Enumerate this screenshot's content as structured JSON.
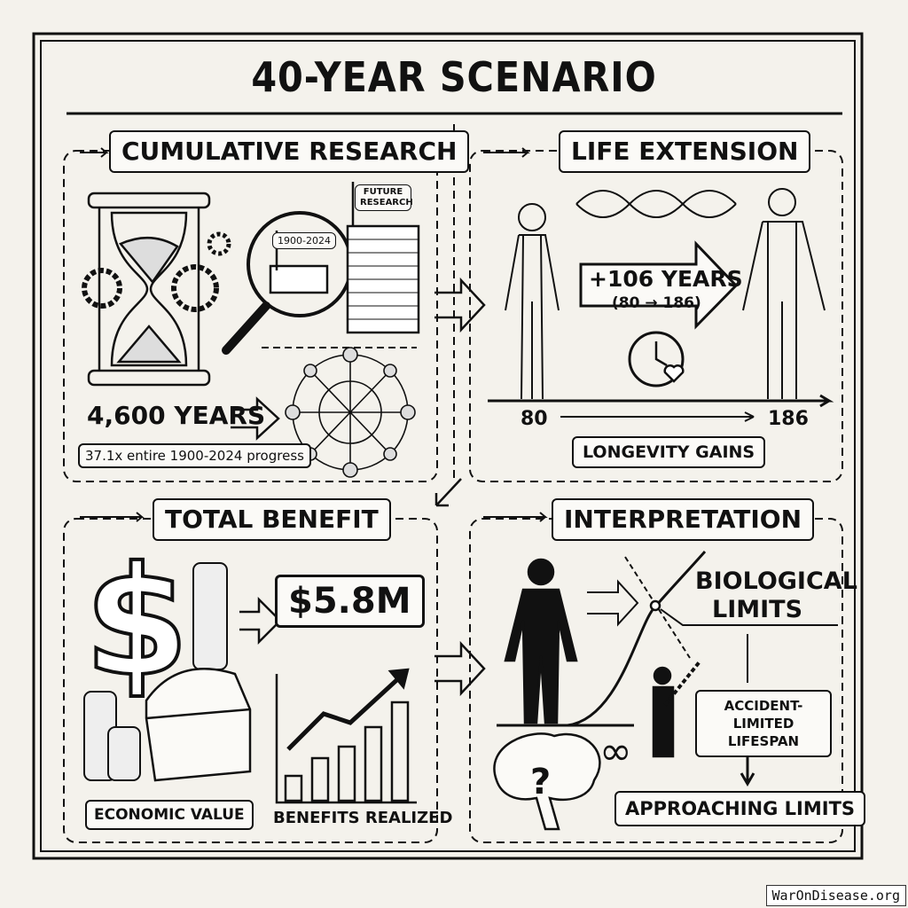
{
  "title": "40-YEAR SCENARIO",
  "panels": {
    "cumulative_research": {
      "title": "CUMULATIVE RESEARCH",
      "flag_past": "1900-2024",
      "flag_future": "FUTURE RESEARCH",
      "headline": "4,600 YEARS",
      "caption": "37.1x entire 1900-2024 progress"
    },
    "life_extension": {
      "title": "LIFE EXTENSION",
      "gain": "+106 YEARS",
      "range": "(80 → 186)",
      "axis_start": "80",
      "axis_end": "186",
      "label": "LONGEVITY GAINS"
    },
    "total_benefit": {
      "title": "TOTAL BENEFIT",
      "value": "$5.8M",
      "label_left": "ECONOMIC VALUE",
      "label_right": "BENEFITS REALIZED"
    },
    "interpretation": {
      "title": "INTERPRETATION",
      "biological": "BIOLOGICAL LIMITS",
      "accident": "ACCIDENT-LIMITED LIFESPAN",
      "approaching": "APPROACHING LIMITS",
      "infinity": "∞"
    }
  },
  "watermark": "WarOnDisease.org"
}
